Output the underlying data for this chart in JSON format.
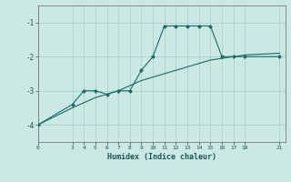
{
  "xlabel": "Humidex (Indice chaleur)",
  "bg_color": "#cce8e2",
  "grid_color": "#b0d4ce",
  "line_color": "#1a6b6b",
  "line1_x": [
    0,
    3,
    4,
    5,
    6,
    7,
    8,
    9,
    10,
    11,
    12,
    13,
    14,
    15,
    16,
    17,
    18,
    21
  ],
  "line1_y": [
    -4.0,
    -3.4,
    -3.0,
    -3.0,
    -3.1,
    -3.0,
    -3.0,
    -2.4,
    -2.0,
    -1.1,
    -1.1,
    -1.1,
    -1.1,
    -1.1,
    -2.0,
    -2.0,
    -2.0,
    -2.0
  ],
  "line2_x": [
    0,
    3,
    4,
    5,
    6,
    7,
    8,
    9,
    10,
    11,
    12,
    13,
    14,
    15,
    16,
    17,
    18,
    21
  ],
  "line2_y": [
    -4.0,
    -3.5,
    -3.35,
    -3.2,
    -3.1,
    -3.0,
    -2.85,
    -2.7,
    -2.6,
    -2.5,
    -2.4,
    -2.3,
    -2.2,
    -2.1,
    -2.05,
    -2.0,
    -1.95,
    -1.9
  ],
  "xticks": [
    0,
    3,
    4,
    5,
    6,
    7,
    8,
    9,
    10,
    11,
    12,
    13,
    14,
    15,
    16,
    17,
    18,
    21
  ],
  "yticks": [
    -4,
    -3,
    -2,
    -1
  ],
  "ylim": [
    -4.5,
    -0.5
  ],
  "xlim": [
    0,
    21.5
  ]
}
